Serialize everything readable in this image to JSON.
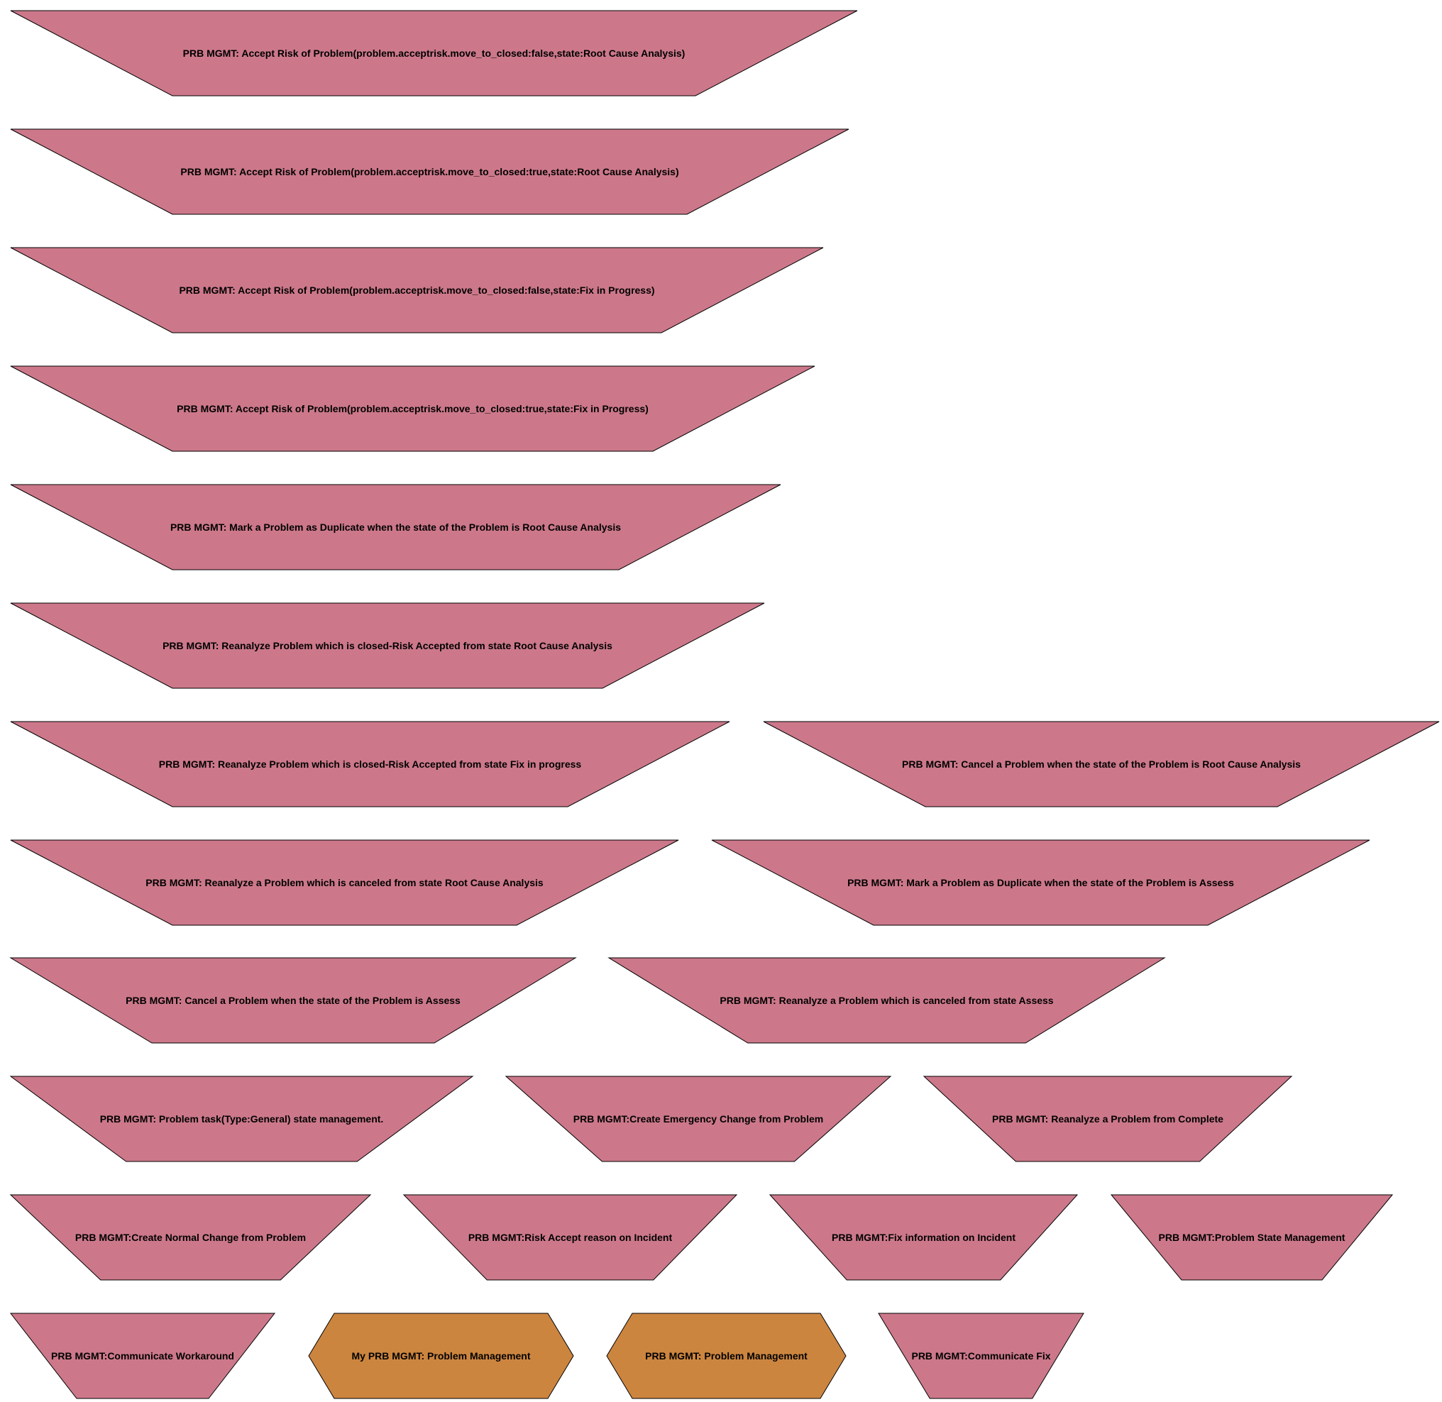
{
  "colors": {
    "trapezoid_fill": "#cc788a",
    "hexagon_fill": "#cc853f",
    "stroke": "#000000",
    "text": "#000000"
  },
  "nodes": [
    {
      "id": "n01",
      "shape": "inv-trapezium",
      "label": "PRB MGMT: Accept Risk of Problem(problem.acceptrisk.move_to_closed:false,state:Root Cause Analysis)"
    },
    {
      "id": "n02",
      "shape": "inv-trapezium",
      "label": "PRB MGMT: Accept Risk of Problem(problem.acceptrisk.move_to_closed:true,state:Root Cause Analysis)"
    },
    {
      "id": "n03",
      "shape": "inv-trapezium",
      "label": "PRB MGMT: Accept Risk of Problem(problem.acceptrisk.move_to_closed:false,state:Fix in Progress)"
    },
    {
      "id": "n04",
      "shape": "inv-trapezium",
      "label": "PRB MGMT: Accept Risk of Problem(problem.acceptrisk.move_to_closed:true,state:Fix in Progress)"
    },
    {
      "id": "n05",
      "shape": "inv-trapezium",
      "label": "PRB MGMT: Mark a Problem as Duplicate when the state of the Problem is Root Cause Analysis"
    },
    {
      "id": "n06",
      "shape": "inv-trapezium",
      "label": "PRB MGMT: Reanalyze Problem which is closed-Risk Accepted from state Root Cause Analysis"
    },
    {
      "id": "n07",
      "shape": "inv-trapezium",
      "label": "PRB MGMT: Reanalyze Problem which is closed-Risk Accepted from state Fix in progress"
    },
    {
      "id": "n08",
      "shape": "inv-trapezium",
      "label": "PRB MGMT: Cancel a Problem when the state of the Problem is Root Cause Analysis"
    },
    {
      "id": "n09",
      "shape": "inv-trapezium",
      "label": "PRB MGMT: Reanalyze a Problem which is canceled from state Root Cause Analysis"
    },
    {
      "id": "n10",
      "shape": "inv-trapezium",
      "label": "PRB MGMT: Mark a Problem as Duplicate when the state of the Problem is Assess"
    },
    {
      "id": "n11",
      "shape": "inv-trapezium",
      "label": "PRB MGMT: Cancel a Problem when the state of the Problem is Assess"
    },
    {
      "id": "n12",
      "shape": "inv-trapezium",
      "label": "PRB MGMT: Reanalyze a Problem which is canceled from state Assess"
    },
    {
      "id": "n13",
      "shape": "inv-trapezium",
      "label": "PRB MGMT: Problem task(Type:General) state management."
    },
    {
      "id": "n14",
      "shape": "inv-trapezium",
      "label": "PRB MGMT:Create Emergency Change from Problem"
    },
    {
      "id": "n15",
      "shape": "inv-trapezium",
      "label": "PRB MGMT: Reanalyze a Problem from Complete"
    },
    {
      "id": "n16",
      "shape": "inv-trapezium",
      "label": "PRB MGMT:Create Normal Change from Problem"
    },
    {
      "id": "n17",
      "shape": "inv-trapezium",
      "label": "PRB MGMT:Risk Accept reason on Incident"
    },
    {
      "id": "n18",
      "shape": "inv-trapezium",
      "label": "PRB MGMT:Fix information on Incident"
    },
    {
      "id": "n19",
      "shape": "inv-trapezium",
      "label": "PRB MGMT:Problem State Management"
    },
    {
      "id": "n20",
      "shape": "inv-trapezium",
      "label": "PRB MGMT:Communicate Workaround"
    },
    {
      "id": "n21",
      "shape": "hexagon",
      "label": "My PRB MGMT: Problem Management"
    },
    {
      "id": "n22",
      "shape": "hexagon",
      "label": "PRB MGMT: Problem Management"
    },
    {
      "id": "n23",
      "shape": "inv-trapezium",
      "label": "PRB MGMT:Communicate Fix"
    }
  ]
}
